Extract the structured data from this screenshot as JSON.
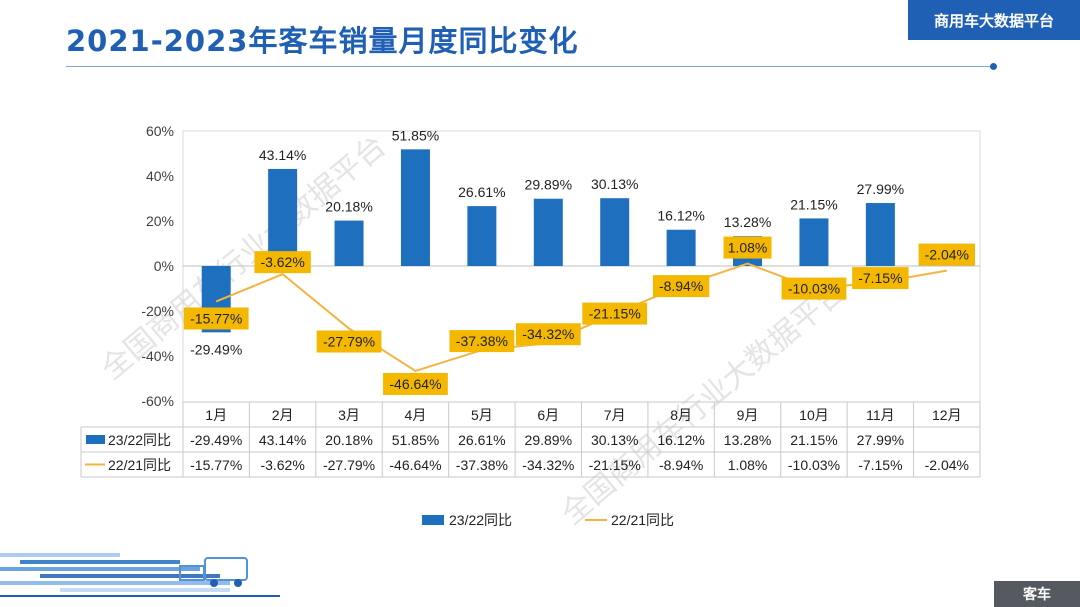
{
  "header": {
    "title": "2021-2023年客车销量月度同比变化",
    "brand": "商用车大数据平台"
  },
  "footer": {
    "tag": "客车"
  },
  "watermark": "全国商用车行业大数据平台",
  "colors": {
    "title": "#1f5fb4",
    "bar": "#1f6fbf",
    "line": "#f5b342",
    "label_box": "#f5b800"
  },
  "chart_data": {
    "type": "bar+line",
    "categories": [
      "1月",
      "2月",
      "3月",
      "4月",
      "5月",
      "6月",
      "7月",
      "8月",
      "9月",
      "10月",
      "11月",
      "12月"
    ],
    "y_ticks": [
      "60%",
      "40%",
      "20%",
      "0%",
      "-20%",
      "-40%",
      "-60%"
    ],
    "ylim": [
      -60,
      60
    ],
    "series": [
      {
        "name": "23/22同比",
        "type": "bar",
        "values": [
          -29.49,
          43.14,
          20.18,
          51.85,
          26.61,
          29.89,
          30.13,
          16.12,
          13.28,
          21.15,
          27.99,
          null
        ],
        "labels": [
          "-29.49%",
          "43.14%",
          "20.18%",
          "51.85%",
          "26.61%",
          "29.89%",
          "30.13%",
          "16.12%",
          "13.28%",
          "21.15%",
          "27.99%",
          ""
        ]
      },
      {
        "name": "22/21同比",
        "type": "line",
        "values": [
          -15.77,
          -3.62,
          -27.79,
          -46.64,
          -37.38,
          -34.32,
          -21.15,
          -8.94,
          1.08,
          -10.03,
          -7.15,
          -2.04
        ],
        "labels": [
          "-15.77%",
          "-3.62%",
          "-27.79%",
          "-46.64%",
          "-37.38%",
          "-34.32%",
          "-21.15%",
          "-8.94%",
          "1.08%",
          "-10.03%",
          "-7.15%",
          "-2.04%"
        ]
      }
    ],
    "legend": {
      "position": "bottom"
    },
    "data_table": true,
    "grid": false
  }
}
